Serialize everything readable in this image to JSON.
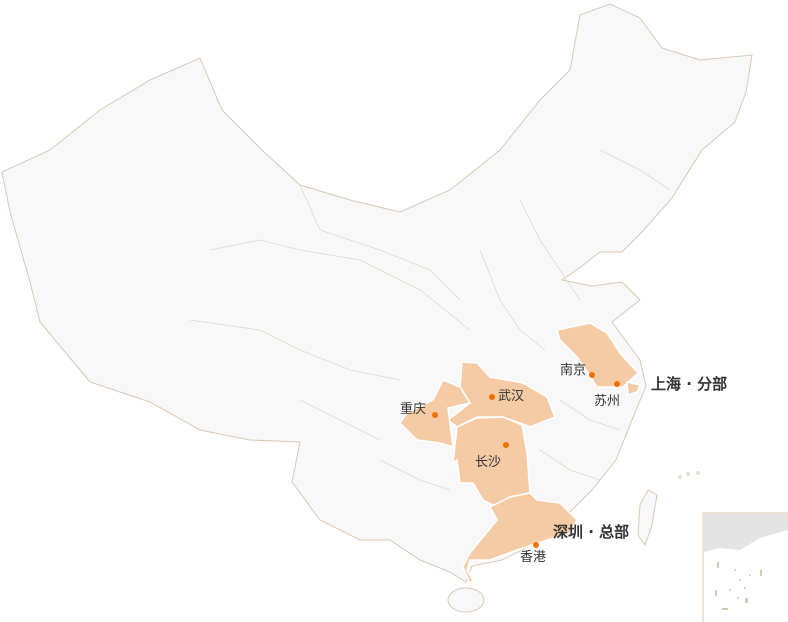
{
  "map": {
    "colors": {
      "land": "#f8f8f8",
      "border": "#d8c9b4",
      "highlight": "#f5cba5",
      "marker": "#f07000",
      "text": "#333333"
    },
    "highlighted_regions": [
      "Jiangsu",
      "Shanghai",
      "Hubei",
      "Chongqing",
      "Hunan",
      "Guangdong"
    ],
    "cities": [
      {
        "name": "南京"
      },
      {
        "name": "苏州"
      },
      {
        "name": "武汉"
      },
      {
        "name": "重庆"
      },
      {
        "name": "长沙"
      },
      {
        "name": "香港"
      }
    ],
    "offices": [
      {
        "label": "上海 · 分部"
      },
      {
        "label": "深圳 · 总部"
      }
    ]
  }
}
